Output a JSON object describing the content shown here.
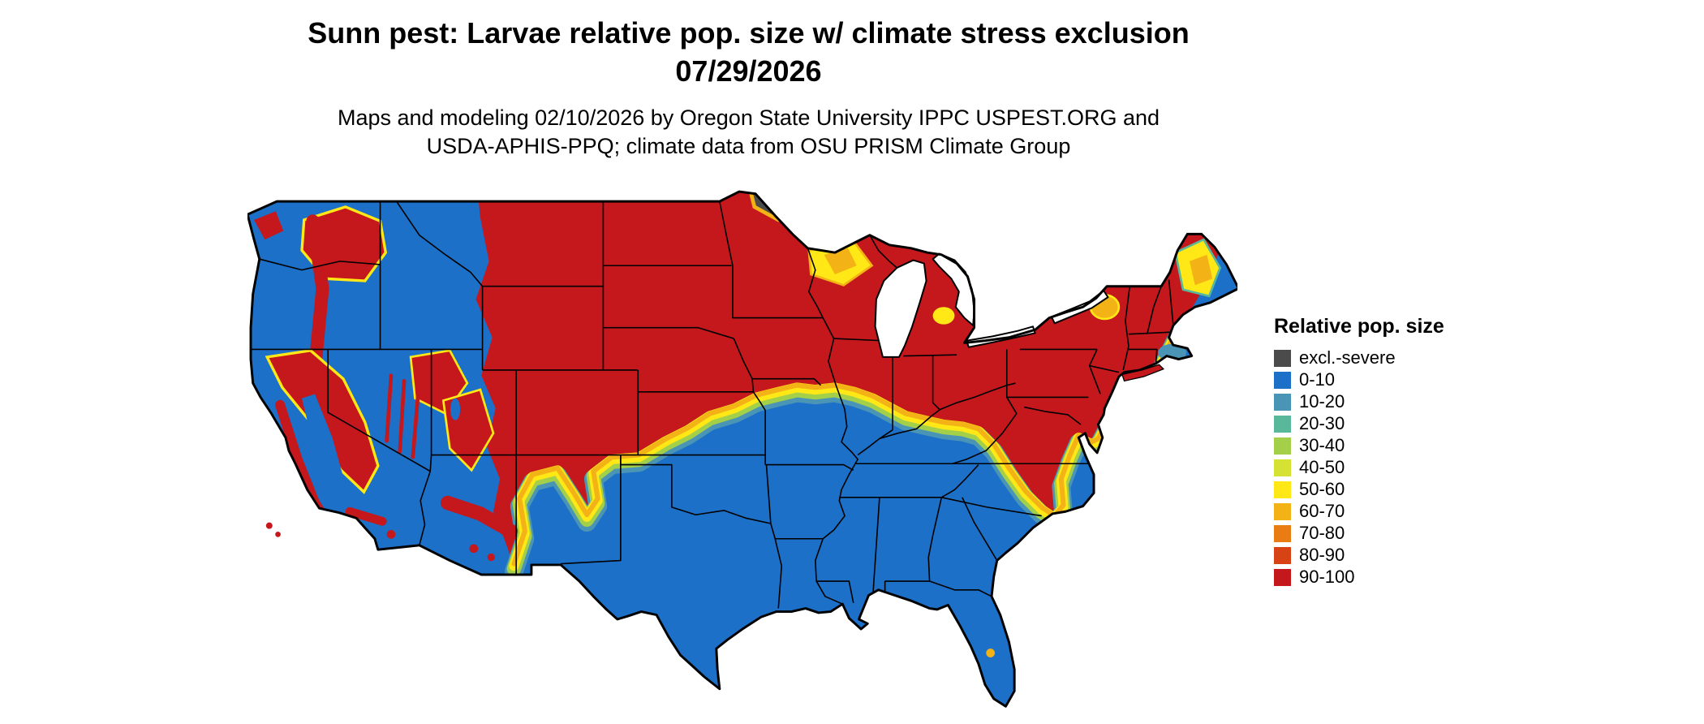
{
  "header": {
    "title_line1": "Sunn pest: Larvae relative pop. size w/ climate stress exclusion",
    "title_line2": "07/29/2026",
    "subtitle_line1": "Maps and modeling 02/10/2026 by Oregon State University IPPC USPEST.ORG and",
    "subtitle_line2": "USDA-APHIS-PPQ; climate data from OSU PRISM Climate Group"
  },
  "legend": {
    "title": "Relative pop. size",
    "items": [
      {
        "key": "excl",
        "label": "excl.-severe",
        "color": "#4b4b4b"
      },
      {
        "key": "p0_10",
        "label": "0-10",
        "color": "#1c70c8"
      },
      {
        "key": "p10_20",
        "label": "10-20",
        "color": "#4a95b5"
      },
      {
        "key": "p20_30",
        "label": "20-30",
        "color": "#59b89a"
      },
      {
        "key": "p30_40",
        "label": "30-40",
        "color": "#a3cf49"
      },
      {
        "key": "p40_50",
        "label": "40-50",
        "color": "#d5e133"
      },
      {
        "key": "p50_60",
        "label": "50-60",
        "color": "#ffe816"
      },
      {
        "key": "p60_70",
        "label": "60-70",
        "color": "#f3b317"
      },
      {
        "key": "p70_80",
        "label": "70-80",
        "color": "#e97d14"
      },
      {
        "key": "p80_90",
        "label": "80-90",
        "color": "#d84315"
      },
      {
        "key": "p90_100",
        "label": "90-100",
        "color": "#c4181d"
      }
    ]
  }
}
